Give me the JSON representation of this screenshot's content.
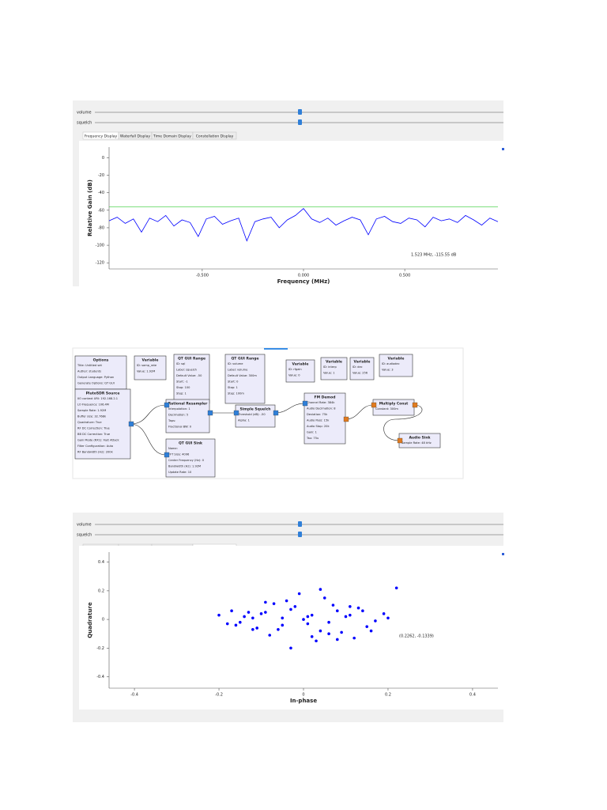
{
  "spectrum_view": {
    "sliders": [
      "volume",
      "squelch"
    ],
    "tabs": [
      "Frequency Display",
      "Waterfall Display",
      "Time Domain Display",
      "Constellation Display"
    ],
    "active_tab": 0,
    "plot": {
      "type": "line",
      "ylabel": "Relative Gain (dB)",
      "xlabel": "Frequency (MHz)",
      "xlim": [
        -0.96,
        0.96
      ],
      "ylim": [
        -127,
        12
      ],
      "xticks": [
        {
          "value": -0.5,
          "label": "-0.500"
        },
        {
          "value": 0,
          "label": "0.000"
        },
        {
          "value": 0.5,
          "label": "0.500"
        }
      ],
      "yticks": [
        0,
        -20,
        -40,
        -60,
        -80,
        -100,
        -120
      ],
      "color": "#0000ff",
      "threshold": -56,
      "threshold_color": "#33cc33",
      "annotation": "1.523 MHz, -115.55 dB",
      "x": [
        -0.96,
        -0.92,
        -0.88,
        -0.84,
        -0.8,
        -0.76,
        -0.72,
        -0.68,
        -0.64,
        -0.6,
        -0.56,
        -0.52,
        -0.48,
        -0.44,
        -0.4,
        -0.36,
        -0.32,
        -0.28,
        -0.24,
        -0.2,
        -0.16,
        -0.12,
        -0.08,
        -0.04,
        0,
        0.04,
        0.08,
        0.12,
        0.16,
        0.2,
        0.24,
        0.28,
        0.32,
        0.36,
        0.4,
        0.44,
        0.48,
        0.52,
        0.56,
        0.6,
        0.64,
        0.68,
        0.72,
        0.76,
        0.8,
        0.84,
        0.88,
        0.92,
        0.96
      ],
      "values": [
        -72,
        -68,
        -75,
        -70,
        -85,
        -69,
        -73,
        -66,
        -78,
        -71,
        -74,
        -90,
        -70,
        -67,
        -76,
        -72,
        -69,
        -95,
        -73,
        -70,
        -68,
        -80,
        -71,
        -66,
        -58,
        -70,
        -74,
        -69,
        -77,
        -72,
        -68,
        -71,
        -88,
        -70,
        -67,
        -73,
        -75,
        -69,
        -71,
        -79,
        -68,
        -72,
        -70,
        -74,
        -66,
        -71,
        -77,
        -69,
        -73
      ]
    }
  },
  "flowgraph": {
    "blocks": [
      {
        "title": "Options",
        "params": [
          "Title: Untitled set",
          "Author: students",
          "Output Language: Python",
          "Generate Options: QT GUI"
        ]
      },
      {
        "title": "Variable",
        "params": [
          "ID: samp_rate",
          "Value: 1.92M"
        ]
      },
      {
        "title": "QT GUI Range",
        "params": [
          "ID: sql",
          "Label: squelch",
          "Default Value: -50",
          "Start: -1",
          "Stop: 100",
          "Step: 1"
        ]
      },
      {
        "title": "QT GUI Range",
        "params": [
          "ID: volume",
          "Label: volume",
          "Default Value: 300m",
          "Start: 0",
          "Stop: 1",
          "Step: 100m"
        ]
      },
      {
        "title": "Variable",
        "params": [
          "ID: rfgain",
          "Value: 0"
        ]
      },
      {
        "title": "Variable",
        "params": [
          "ID: interp",
          "Value: 1"
        ]
      },
      {
        "title": "Variable",
        "params": [
          "ID: dec",
          "Value: 256"
        ]
      },
      {
        "title": "Variable",
        "params": [
          "ID: audiodec",
          "Value: 3"
        ]
      },
      {
        "title": "PlutoSDR Source",
        "params": [
          "IIO context URI: 192.168.2.1",
          "LO Frequency: 106.4M",
          "Sample Rate: 1.92M",
          "Buffer size: 32.768k",
          "Quadrature: True",
          "RF DC Correction: True",
          "BB DC Correction: True",
          "Gain Mode (RX1): Fast Attack",
          "Filter Configuration: Auto",
          "RF Bandwidth (Hz): 200k"
        ]
      },
      {
        "title": "Rational Resampler",
        "params": [
          "Interpolation: 1",
          "Decimation: 5",
          "Taps:",
          "Fractional BW: 0"
        ]
      },
      {
        "title": "QT GUI Sink",
        "params": [
          "Name:",
          "FFT Size: 4096",
          "Center Frequency (Hz): 0",
          "Bandwidth (Hz): 1.92M",
          "Update Rate: 10"
        ]
      },
      {
        "title": "Simple Squelch",
        "params": [
          "Threshold (dB): -50",
          "Alpha: 1"
        ]
      },
      {
        "title": "FM Demod",
        "params": [
          "Channel Rate: 384k",
          "Audio Decimation: 8",
          "Deviation: 75k",
          "Audio Pass: 15k",
          "Audio Stop: 20k",
          "Gain: 1",
          "Tau: 75u"
        ]
      },
      {
        "title": "Multiply Const",
        "params": [
          "Constant: 300m"
        ]
      },
      {
        "title": "Audio Sink",
        "params": [
          "Sample Rate: 48 kHz"
        ]
      }
    ]
  },
  "constellation_view": {
    "sliders": [
      "volume",
      "squelch"
    ],
    "tabs": [
      "Frequency Display",
      "Waterfall Display",
      "Time Domain Display",
      "Constellation Display"
    ],
    "active_tab": 3,
    "plot": {
      "type": "scatter",
      "ylabel": "Quadrature",
      "xlabel": "In-phase",
      "xlim": [
        -0.46,
        0.46
      ],
      "ylim": [
        -0.48,
        0.47
      ],
      "xticks": [
        -0.4,
        -0.2,
        0,
        0.2,
        0.4
      ],
      "yticks": [
        0.4,
        0.2,
        0,
        -0.2,
        -0.4
      ],
      "color": "#0000ff",
      "annotation": "(0.2262, -0.1339)",
      "x": [
        0.01,
        -0.05,
        0.08,
        -0.12,
        0.15,
        -0.02,
        0.04,
        -0.09,
        0.11,
        -0.15,
        0.19,
        -0.18,
        0.06,
        -0.07,
        0.02,
        -0.03,
        0.13,
        -0.11,
        0.09,
        -0.04,
        0.0,
        0.05,
        -0.08,
        0.17,
        -0.13,
        0.03,
        -0.01,
        0.1,
        -0.06,
        0.07,
        -0.1,
        0.12,
        -0.14,
        0.14,
        -0.16,
        0.2,
        -0.2,
        0.04,
        -0.03,
        0.01,
        0.22,
        0.16,
        -0.17,
        0.08,
        -0.09,
        0.02,
        -0.05,
        0.06,
        0.11,
        -0.12
      ],
      "y": [
        0.02,
        -0.04,
        0.06,
        0.01,
        -0.05,
        0.09,
        -0.08,
        0.05,
        0.03,
        -0.02,
        0.04,
        -0.03,
        -0.1,
        0.11,
        -0.12,
        0.07,
        0.08,
        -0.06,
        -0.09,
        0.13,
        0.0,
        0.15,
        -0.11,
        -0.01,
        0.05,
        -0.15,
        0.18,
        0.02,
        -0.07,
        0.1,
        0.04,
        -0.13,
        0.02,
        0.06,
        -0.04,
        0.01,
        0.03,
        0.21,
        -0.2,
        -0.03,
        0.22,
        -0.08,
        0.06,
        -0.14,
        0.12,
        0.03,
        0.01,
        -0.02,
        0.09,
        -0.07
      ]
    }
  }
}
